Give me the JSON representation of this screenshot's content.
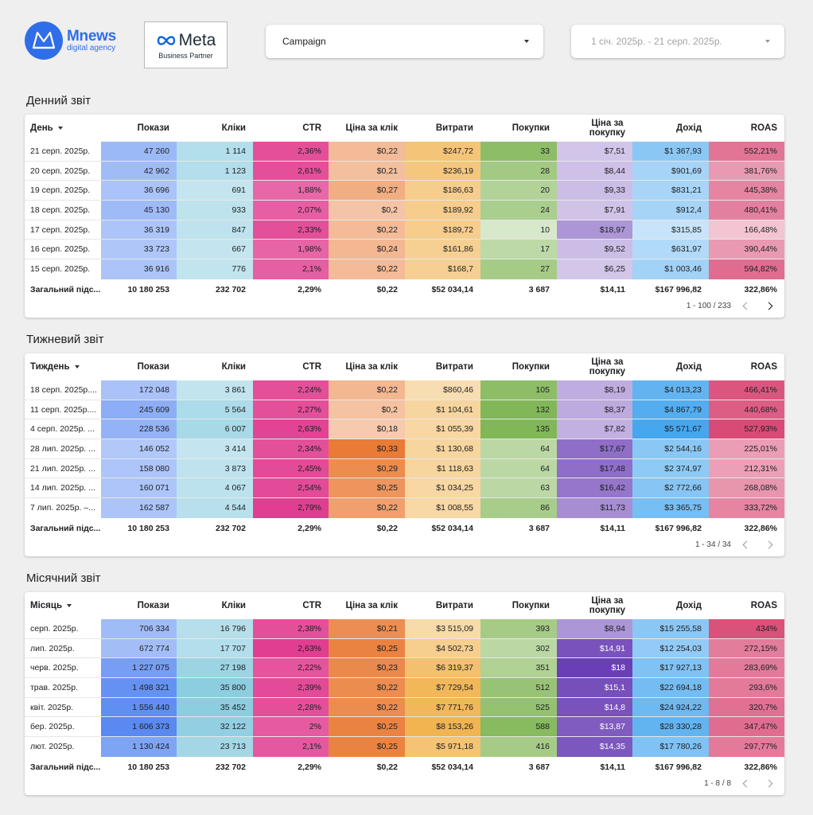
{
  "header": {
    "brand_name": "Mnews",
    "brand_sub": "digital agency",
    "partner_name": "Meta",
    "partner_sub": "Business Partner",
    "campaign_label": "Campaign",
    "date_range": "1 січ. 2025р. - 21 серп. 2025р."
  },
  "columns": [
    "Покази",
    "Кліки",
    "CTR",
    "Ціна за клік",
    "Витрати",
    "Покупки",
    "Ціна за покупку",
    "Дохід",
    "ROAS"
  ],
  "columns_split": {
    "cpa_line1": "Ціна за",
    "cpa_line2": "покупку"
  },
  "colors": {
    "impressions": "#4a7ff0",
    "clicks": "#6fc0d8",
    "ctr": "#e0368c",
    "cpc": "#e8752d",
    "spend": "#f0ad42",
    "purchases": "#7db451",
    "cpa": "#6a3fb5",
    "revenue": "#47a7ee",
    "roas": "#d63e6c"
  },
  "tables": [
    {
      "title": "Денний звіт",
      "dim_label": "День",
      "rows": [
        [
          "21 серп. 2025р.",
          "47 260",
          "1 114",
          "2,36%",
          "$0,22",
          "$247,72",
          "33",
          "$7,51",
          "$1 367,93",
          "552,21%"
        ],
        [
          "20 серп. 2025р.",
          "42 962",
          "1 123",
          "2,61%",
          "$0,21",
          "$236,19",
          "28",
          "$8,44",
          "$901,69",
          "381,76%"
        ],
        [
          "19 серп. 2025р.",
          "36 696",
          "691",
          "1,88%",
          "$0,27",
          "$186,63",
          "20",
          "$9,33",
          "$831,21",
          "445,38%"
        ],
        [
          "18 серп. 2025р.",
          "45 130",
          "933",
          "2,07%",
          "$0,2",
          "$189,92",
          "24",
          "$7,91",
          "$912,4",
          "480,41%"
        ],
        [
          "17 серп. 2025р.",
          "36 319",
          "847",
          "2,33%",
          "$0,22",
          "$189,72",
          "10",
          "$18,97",
          "$315,85",
          "166,48%"
        ],
        [
          "16 серп. 2025р.",
          "33 723",
          "667",
          "1,98%",
          "$0,24",
          "$161,86",
          "17",
          "$9,52",
          "$631,97",
          "390,44%"
        ],
        [
          "15 серп. 2025р.",
          "36 916",
          "776",
          "2,1%",
          "$0,22",
          "$168,7",
          "27",
          "$6,25",
          "$1 003,46",
          "594,82%"
        ]
      ],
      "intensity": [
        [
          0.45,
          0.42,
          0.85,
          0.38,
          0.65,
          0.85,
          0.15,
          0.55,
          0.65
        ],
        [
          0.42,
          0.42,
          0.85,
          0.35,
          0.62,
          0.65,
          0.18,
          0.38,
          0.42
        ],
        [
          0.35,
          0.28,
          0.7,
          0.5,
          0.52,
          0.5,
          0.2,
          0.36,
          0.55
        ],
        [
          0.43,
          0.33,
          0.75,
          0.3,
          0.52,
          0.58,
          0.16,
          0.38,
          0.58
        ],
        [
          0.34,
          0.32,
          0.85,
          0.38,
          0.52,
          0.15,
          0.45,
          0.15,
          0.15
        ],
        [
          0.32,
          0.28,
          0.72,
          0.42,
          0.48,
          0.4,
          0.2,
          0.3,
          0.42
        ],
        [
          0.34,
          0.3,
          0.76,
          0.38,
          0.48,
          0.62,
          0.14,
          0.4,
          0.7
        ]
      ],
      "totals": [
        "Загальний підс...",
        "10 180 253",
        "232 702",
        "2,29%",
        "$0,22",
        "$52 034,14",
        "3 687",
        "$14,11",
        "$167 996,82",
        "322,86%"
      ],
      "pager_text": "1 - 100 / 233",
      "pager_next_active": true
    },
    {
      "title": "Тижневий звіт",
      "dim_label": "Тиждень",
      "rows": [
        [
          "18 серп. 2025р....",
          "172 048",
          "3 861",
          "2,24%",
          "$0,22",
          "$860,46",
          "105",
          "$8,19",
          "$4 013,23",
          "466,41%"
        ],
        [
          "11 серп. 2025р....",
          "245 609",
          "5 564",
          "2,27%",
          "$0,2",
          "$1 104,61",
          "132",
          "$8,37",
          "$4 867,79",
          "440,68%"
        ],
        [
          "4 серп. 2025р. ...",
          "228 536",
          "6 007",
          "2,63%",
          "$0,18",
          "$1 055,39",
          "135",
          "$7,82",
          "$5 571,67",
          "527,93%"
        ],
        [
          "28 лип. 2025р. ...",
          "146 052",
          "3 414",
          "2,34%",
          "$0,33",
          "$1 130,68",
          "64",
          "$17,67",
          "$2 544,16",
          "225,01%"
        ],
        [
          "21 лип. 2025р. ...",
          "158 080",
          "3 873",
          "2,45%",
          "$0,29",
          "$1 118,63",
          "64",
          "$17,48",
          "$2 374,97",
          "212,31%"
        ],
        [
          "14 лип. 2025р. ...",
          "160 071",
          "4 067",
          "2,54%",
          "$0,25",
          "$1 034,25",
          "63",
          "$16,42",
          "$2 772,66",
          "268,08%"
        ],
        [
          "7 лип. 2025р. –...",
          "162 587",
          "4 544",
          "2,79%",
          "$0,22",
          "$1 008,55",
          "86",
          "$11,73",
          "$3 365,75",
          "333,72%"
        ]
      ],
      "intensity": [
        [
          0.36,
          0.3,
          0.85,
          0.42,
          0.28,
          0.85,
          0.3,
          0.82,
          0.85
        ],
        [
          0.55,
          0.48,
          0.85,
          0.32,
          0.4,
          0.95,
          0.32,
          0.92,
          0.8
        ],
        [
          0.5,
          0.52,
          0.92,
          0.25,
          0.38,
          0.95,
          0.28,
          1.0,
          0.92
        ],
        [
          0.3,
          0.28,
          0.85,
          0.95,
          0.4,
          0.42,
          0.7,
          0.55,
          0.4
        ],
        [
          0.33,
          0.32,
          0.88,
          0.8,
          0.4,
          0.42,
          0.7,
          0.52,
          0.38
        ],
        [
          0.33,
          0.35,
          0.88,
          0.72,
          0.38,
          0.42,
          0.65,
          0.58,
          0.45
        ],
        [
          0.34,
          0.38,
          0.95,
          0.62,
          0.36,
          0.6,
          0.5,
          0.68,
          0.55
        ]
      ],
      "totals": [
        "Загальний підс...",
        "10 180 253",
        "232 702",
        "2,29%",
        "$0,22",
        "$52 034,14",
        "3 687",
        "$14,11",
        "$167 996,82",
        "322,86%"
      ],
      "pager_text": "1 - 34 / 34",
      "pager_next_active": false
    },
    {
      "title": "Місячний звіт",
      "dim_label": "Місяць",
      "rows": [
        [
          "серп. 2025р.",
          "706 334",
          "16 796",
          "2,38%",
          "$0,21",
          "$3 515,09",
          "393",
          "$8,94",
          "$15 255,58",
          "434%"
        ],
        [
          "лип. 2025р.",
          "672 774",
          "17 707",
          "2,63%",
          "$0,25",
          "$4 502,73",
          "302",
          "$14,91",
          "$12 254,03",
          "272,15%"
        ],
        [
          "черв. 2025р.",
          "1 227 075",
          "27 198",
          "2,22%",
          "$0,23",
          "$6 319,37",
          "351",
          "$18",
          "$17 927,13",
          "283,69%"
        ],
        [
          "трав. 2025р.",
          "1 498 321",
          "35 800",
          "2,39%",
          "$0,22",
          "$7 729,54",
          "512",
          "$15,1",
          "$22 694,18",
          "293,6%"
        ],
        [
          "квіт. 2025р.",
          "1 556 440",
          "35 452",
          "2,28%",
          "$0,22",
          "$7 771,76",
          "525",
          "$14,8",
          "$24 924,22",
          "320,7%"
        ],
        [
          "бер. 2025р.",
          "1 606 373",
          "32 122",
          "2%",
          "$0,25",
          "$8 153,26",
          "588",
          "$13,87",
          "$28 330,28",
          "347,47%"
        ],
        [
          "лют. 2025р.",
          "1 130 424",
          "23 713",
          "2,1%",
          "$0,25",
          "$5 971,18",
          "416",
          "$14,35",
          "$17 780,26",
          "297,77%"
        ]
      ],
      "intensity": [
        [
          0.42,
          0.4,
          0.85,
          0.78,
          0.32,
          0.62,
          0.45,
          0.55,
          0.88
        ],
        [
          0.4,
          0.42,
          0.95,
          0.88,
          0.5,
          0.42,
          0.88,
          0.5,
          0.6
        ],
        [
          0.7,
          0.62,
          0.82,
          0.82,
          0.72,
          0.52,
          1.0,
          0.62,
          0.62
        ],
        [
          0.82,
          0.75,
          0.88,
          0.8,
          0.85,
          0.75,
          0.9,
          0.7,
          0.62
        ],
        [
          0.85,
          0.75,
          0.85,
          0.8,
          0.85,
          0.78,
          0.88,
          0.75,
          0.68
        ],
        [
          0.9,
          0.7,
          0.78,
          0.88,
          0.9,
          0.9,
          0.82,
          0.82,
          0.7
        ],
        [
          0.65,
          0.55,
          0.8,
          0.88,
          0.68,
          0.62,
          0.85,
          0.62,
          0.62
        ]
      ],
      "totals": [
        "Загальний підс...",
        "10 180 253",
        "232 702",
        "2,29%",
        "$0,22",
        "$52 034,14",
        "3 687",
        "$14,11",
        "$167 996,82",
        "322,86%"
      ],
      "pager_text": "1 - 8 / 8",
      "pager_next_active": false
    }
  ]
}
